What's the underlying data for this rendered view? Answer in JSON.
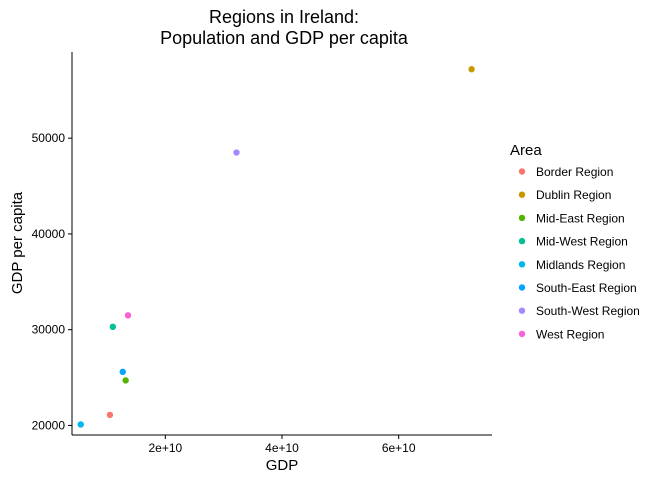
{
  "chart_data": {
    "type": "scatter",
    "title": "Regions in Ireland:",
    "subtitle": "Population and GDP per capita",
    "xlabel": "GDP",
    "ylabel": "GDP per capita",
    "xlim": [
      4000000000,
      76000000000
    ],
    "ylim": [
      19500000000,
      59000
    ],
    "x_ticks": [
      {
        "value": 20000000000,
        "label": "2e+10"
      },
      {
        "value": 40000000000,
        "label": "4e+10"
      },
      {
        "value": 60000000000,
        "label": "6e+10"
      }
    ],
    "y_ticks": [
      {
        "value": 20000,
        "label": "20000"
      },
      {
        "value": 30000,
        "label": "30000"
      },
      {
        "value": 40000,
        "label": "40000"
      },
      {
        "value": 50000,
        "label": "50000"
      }
    ],
    "grid": false,
    "legend": {
      "title": "Area",
      "position": "right"
    },
    "series": [
      {
        "name": "Border Region",
        "color": "#F8766D",
        "x": 10500000000,
        "y": 21100
      },
      {
        "name": "Dublin Region",
        "color": "#C49A00",
        "x": 72500000000,
        "y": 57200
      },
      {
        "name": "Mid-East Region",
        "color": "#53B400",
        "x": 13200000000,
        "y": 24700
      },
      {
        "name": "Mid-West Region",
        "color": "#00C094",
        "x": 11000000000,
        "y": 30300
      },
      {
        "name": "Midlands Region",
        "color": "#00B6EB",
        "x": 5500000000,
        "y": 20100
      },
      {
        "name": "South-East Region",
        "color": "#06A4FF",
        "x": 12700000000,
        "y": 25600
      },
      {
        "name": "South-West Region",
        "color": "#A58AFF",
        "x": 32200000000,
        "y": 48500
      },
      {
        "name": "West Region",
        "color": "#FB61D7",
        "x": 13600000000,
        "y": 31500
      }
    ]
  }
}
